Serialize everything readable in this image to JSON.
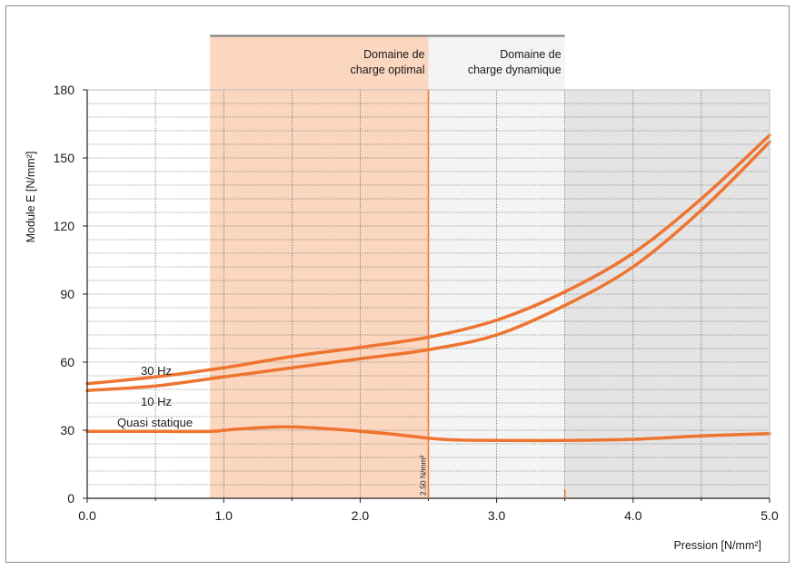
{
  "chart_data": {
    "type": "line",
    "xlabel": "Pression [N/mm²]",
    "ylabel": "Module E [N/mm²]",
    "xlim": [
      0,
      5
    ],
    "ylim": [
      0,
      180
    ],
    "x_ticks": [
      "0.0",
      "1.0",
      "2.0",
      "3.0",
      "4.0",
      "5.0"
    ],
    "y_ticks": [
      "0",
      "30",
      "60",
      "90",
      "120",
      "150",
      "180"
    ],
    "grid": true,
    "regions": [
      {
        "label_line1": "Domaine de",
        "label_line2": "charge optimal",
        "x_start": 0.9,
        "x_end": 2.5,
        "color": "#fbd7c0"
      },
      {
        "label_line1": "Domaine de",
        "label_line2": "charge dynamique",
        "x_start": 2.5,
        "x_end": 3.5,
        "color": "#f3f4f4"
      },
      {
        "label_line1": "",
        "label_line2": "",
        "x_start": 3.5,
        "x_end": 5.0,
        "color": "#e4e4e4"
      }
    ],
    "marker": {
      "x": 2.5,
      "label": "2.50 N/mm²"
    },
    "series": [
      {
        "name": "30 Hz",
        "color": "#ee7430",
        "x": [
          0,
          0.5,
          1.0,
          1.5,
          2.0,
          2.5,
          3.0,
          3.5,
          4.0,
          4.5,
          5.0
        ],
        "y": [
          50.5,
          53.5,
          57.5,
          62.5,
          66.5,
          71,
          78.5,
          91,
          108,
          132,
          160
        ]
      },
      {
        "name": "10 Hz",
        "color": "#ee7430",
        "x": [
          0,
          0.5,
          1.0,
          1.5,
          2.0,
          2.5,
          3.0,
          3.5,
          4.0,
          4.5,
          5.0
        ],
        "y": [
          47.5,
          49.5,
          53.5,
          57.5,
          61.5,
          65.5,
          72,
          85,
          102,
          127,
          157
        ]
      },
      {
        "name": "Quasi statique",
        "color": "#ee7430",
        "x": [
          0,
          0.5,
          0.9,
          1.1,
          1.45,
          1.8,
          2.2,
          2.6,
          3.0,
          3.5,
          4.0,
          4.5,
          5.0
        ],
        "y": [
          29.5,
          29.5,
          29.5,
          30.5,
          31.5,
          30.5,
          28.5,
          26,
          25.5,
          25.5,
          26,
          27.5,
          28.5
        ]
      }
    ]
  }
}
